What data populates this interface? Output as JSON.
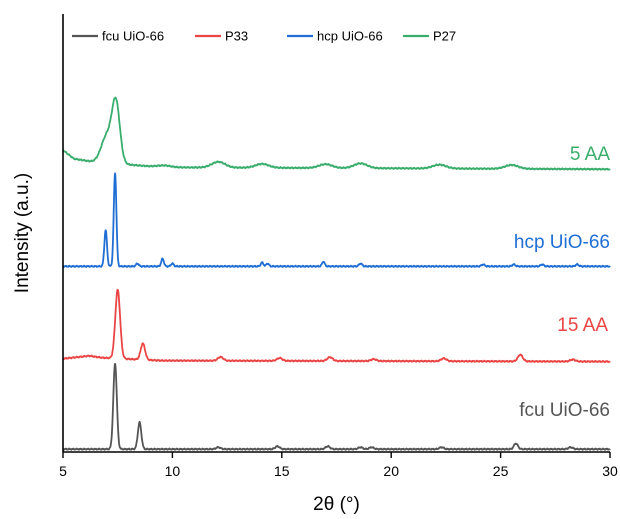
{
  "chart_data": {
    "type": "line",
    "title": "",
    "xlabel": "2θ (°)",
    "ylabel": "Intensity (a.u.)",
    "xlim": [
      5,
      30
    ],
    "ylim": [
      0,
      4.6
    ],
    "x_ticks": [
      "5",
      "10",
      "15",
      "20",
      "25",
      "30"
    ],
    "y_ticks_shown": false,
    "grid": false,
    "legend": {
      "placement": "top",
      "entries": [
        "fcu UiO-66",
        "P33",
        "hcp UiO-66",
        "P27"
      ]
    },
    "series": [
      {
        "name": "fcu UiO-66",
        "label": "fcu UiO-66",
        "color": "#555555",
        "baseline": 0.03,
        "background": [
          [
            5,
            0.03
          ],
          [
            30,
            0.03
          ]
        ],
        "peaks": [
          [
            7.38,
            0.9,
            0.08
          ],
          [
            8.5,
            0.28,
            0.08
          ],
          [
            12.1,
            0.02,
            0.1
          ],
          [
            14.8,
            0.03,
            0.1
          ],
          [
            17.1,
            0.03,
            0.1
          ],
          [
            18.6,
            0.02,
            0.1
          ],
          [
            19.1,
            0.02,
            0.1
          ],
          [
            22.3,
            0.02,
            0.1
          ],
          [
            25.7,
            0.06,
            0.09
          ],
          [
            28.2,
            0.02,
            0.1
          ]
        ]
      },
      {
        "name": "P33",
        "label": "15 AA",
        "color": "#ea4545",
        "baseline": 0.95,
        "background": [
          [
            5,
            0.98
          ],
          [
            6.2,
            1.01
          ],
          [
            6.8,
            0.99
          ],
          [
            9.5,
            0.96
          ],
          [
            30,
            0.95
          ]
        ],
        "peaks": [
          [
            7.5,
            0.72,
            0.11
          ],
          [
            8.65,
            0.17,
            0.1
          ],
          [
            12.2,
            0.04,
            0.12
          ],
          [
            14.9,
            0.03,
            0.12
          ],
          [
            17.2,
            0.04,
            0.12
          ],
          [
            19.2,
            0.02,
            0.12
          ],
          [
            22.4,
            0.03,
            0.12
          ],
          [
            25.9,
            0.07,
            0.11
          ],
          [
            28.3,
            0.02,
            0.12
          ]
        ]
      },
      {
        "name": "hcp UiO-66",
        "label": "hcp UiO-66",
        "color": "#1f6ed4",
        "baseline": 1.95,
        "background": [
          [
            5,
            1.95
          ],
          [
            30,
            1.95
          ]
        ],
        "peaks": [
          [
            6.95,
            0.38,
            0.06
          ],
          [
            7.38,
            0.98,
            0.06
          ],
          [
            8.4,
            0.03,
            0.06
          ],
          [
            9.55,
            0.08,
            0.06
          ],
          [
            10.0,
            0.03,
            0.06
          ],
          [
            14.1,
            0.04,
            0.06
          ],
          [
            14.35,
            0.03,
            0.06
          ],
          [
            16.9,
            0.05,
            0.06
          ],
          [
            18.6,
            0.03,
            0.07
          ],
          [
            24.2,
            0.02,
            0.07
          ],
          [
            25.6,
            0.02,
            0.07
          ],
          [
            26.9,
            0.02,
            0.07
          ],
          [
            28.5,
            0.02,
            0.07
          ]
        ]
      },
      {
        "name": "P27",
        "label": "5 AA",
        "color": "#39ad6c",
        "baseline": 2.97,
        "background": [
          [
            5,
            3.17
          ],
          [
            5.5,
            3.08
          ],
          [
            6.3,
            3.05
          ],
          [
            9.5,
            2.99
          ],
          [
            30,
            2.97
          ]
        ],
        "peaks": [
          [
            7.0,
            0.28,
            0.25
          ],
          [
            7.42,
            0.62,
            0.18
          ],
          [
            9.6,
            0.02,
            0.3
          ],
          [
            12.1,
            0.06,
            0.3
          ],
          [
            14.1,
            0.04,
            0.3
          ],
          [
            17.0,
            0.04,
            0.3
          ],
          [
            18.6,
            0.05,
            0.3
          ],
          [
            22.2,
            0.04,
            0.3
          ],
          [
            25.5,
            0.04,
            0.3
          ]
        ]
      }
    ]
  }
}
